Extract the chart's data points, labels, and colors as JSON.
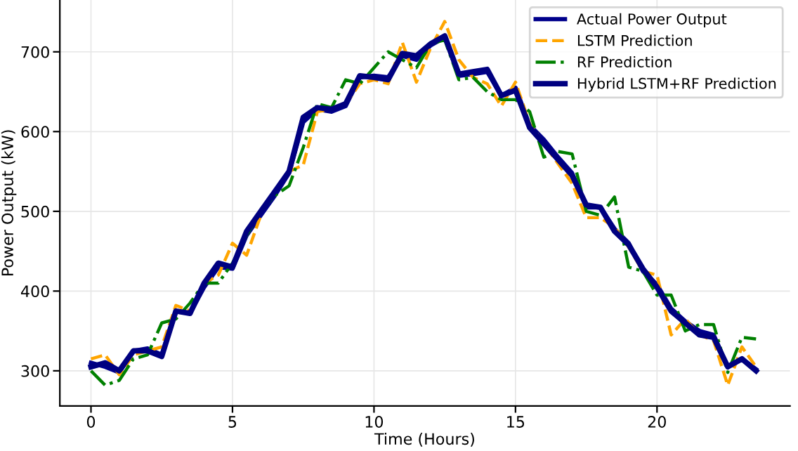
{
  "chart_data": {
    "type": "line",
    "xlabel": "Time (Hours)",
    "ylabel": "Power Output (kW)",
    "x": [
      0,
      0.5,
      1,
      1.5,
      2,
      2.5,
      3,
      3.5,
      4,
      4.5,
      5,
      5.5,
      6,
      6.5,
      7,
      7.5,
      8,
      8.5,
      9,
      9.5,
      10,
      10.5,
      11,
      11.5,
      12,
      12.5,
      13,
      13.5,
      14,
      14.5,
      15,
      15.5,
      16,
      16.5,
      17,
      17.5,
      18,
      18.5,
      19,
      19.5,
      20,
      20.5,
      21,
      21.5,
      22,
      22.5,
      23,
      23.5
    ],
    "series": [
      {
        "name": "Actual Power Output",
        "color": "#00008b",
        "line_style": "solid",
        "values": [
          310,
          305,
          298,
          325,
          328,
          320,
          375,
          372,
          405,
          430,
          428,
          470,
          495,
          520,
          548,
          612,
          628,
          625,
          632,
          668,
          670,
          668,
          695,
          690,
          708,
          718,
          670,
          672,
          675,
          645,
          655,
          608,
          590,
          568,
          548,
          505,
          505,
          478,
          460,
          425,
          408,
          378,
          362,
          350,
          345,
          305,
          315,
          302
        ]
      },
      {
        "name": "LSTM Prediction",
        "color": "#ffa500",
        "line_style": "dashed",
        "values": [
          315,
          320,
          295,
          320,
          325,
          330,
          382,
          375,
          410,
          420,
          460,
          445,
          495,
          null,
          550,
          558,
          625,
          628,
          635,
          660,
          665,
          660,
          712,
          662,
          705,
          738,
          690,
          668,
          660,
          632,
          662,
          610,
          585,
          560,
          535,
          492,
          492,
          480,
          455,
          425,
          420,
          345,
          365,
          345,
          338,
          282,
          330,
          305
        ]
      },
      {
        "name": "RF Prediction",
        "color": "#008000",
        "line_style": "dashdot",
        "values": [
          300,
          282,
          288,
          315,
          320,
          360,
          365,
          385,
          410,
          410,
          435,
          470,
          500,
          520,
          532,
          580,
          635,
          630,
          665,
          660,
          680,
          700,
          690,
          680,
          710,
          715,
          665,
          668,
          650,
          640,
          640,
          625,
          568,
          575,
          572,
          500,
          495,
          518,
          430,
          425,
          395,
          395,
          350,
          358,
          358,
          298,
          342,
          340
        ]
      },
      {
        "name": "Hybrid LSTM+RF Prediction",
        "color": "#000080",
        "line_style": "solid",
        "values": [
          305,
          310,
          300,
          325,
          325,
          318,
          375,
          372,
          410,
          435,
          430,
          475,
          500,
          525,
          550,
          618,
          630,
          628,
          635,
          670,
          668,
          665,
          698,
          695,
          710,
          720,
          672,
          675,
          678,
          645,
          652,
          605,
          585,
          565,
          545,
          508,
          505,
          475,
          458,
          428,
          405,
          375,
          360,
          345,
          342,
          305,
          315,
          300
        ]
      }
    ],
    "xlim": [
      -1.1,
      24.7
    ],
    "ylim": [
      256,
      765
    ],
    "xticks": [
      0,
      5,
      10,
      15,
      20
    ],
    "yticks": [
      300,
      400,
      500,
      600,
      700
    ],
    "grid": true,
    "legend": "top right",
    "marker": "none"
  }
}
